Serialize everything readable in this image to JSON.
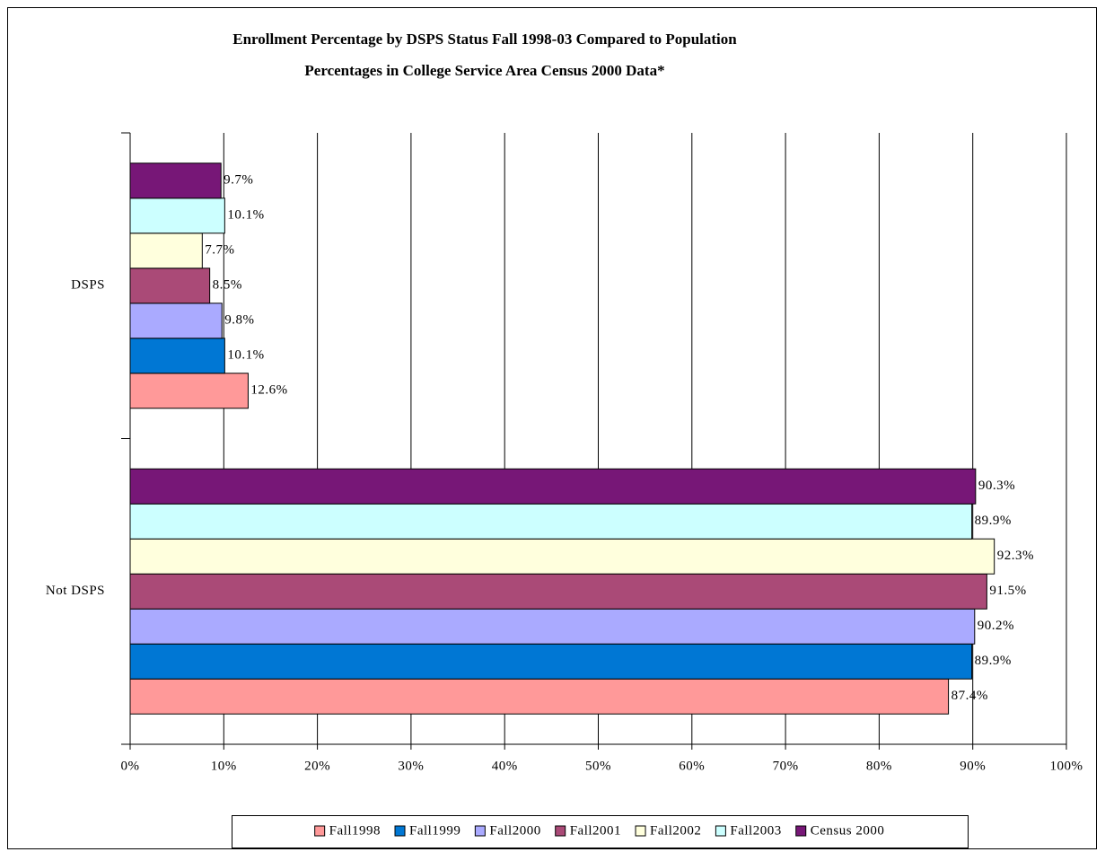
{
  "chart_data": {
    "type": "bar",
    "orientation": "horizontal",
    "title": [
      "Enrollment Percentage by DSPS Status Fall 1998-03 Compared to Population",
      "Percentages in College Service Area Census 2000 Data*"
    ],
    "categories": [
      "DSPS",
      "Not DSPS"
    ],
    "series": [
      {
        "name": "Fall1998",
        "color": "#ff9999",
        "values": [
          12.6,
          87.4
        ],
        "value_labels": [
          "12.6%",
          "87.4%"
        ]
      },
      {
        "name": "Fall1999",
        "color": "#0077d4",
        "values": [
          10.1,
          89.9
        ],
        "value_labels": [
          "10.1%",
          "89.9%"
        ]
      },
      {
        "name": "Fall2000",
        "color": "#aaaaff",
        "values": [
          9.8,
          90.2
        ],
        "value_labels": [
          "9.8%",
          "90.2%"
        ]
      },
      {
        "name": "Fall2001",
        "color": "#aa4a77",
        "values": [
          8.5,
          91.5
        ],
        "value_labels": [
          "8.5%",
          "91.5%"
        ]
      },
      {
        "name": "Fall2002",
        "color": "#ffffdd",
        "values": [
          7.7,
          92.3
        ],
        "value_labels": [
          "7.7%",
          "92.3%"
        ]
      },
      {
        "name": "Fall2003",
        "color": "#ccffff",
        "values": [
          10.1,
          89.9
        ],
        "value_labels": [
          "10.1%",
          "89.9%"
        ]
      },
      {
        "name": "Census 2000",
        "color": "#771777",
        "values": [
          9.7,
          90.3
        ],
        "value_labels": [
          "9.7%",
          "90.3%"
        ]
      }
    ],
    "xlim": [
      0,
      100
    ],
    "xticks": [
      {
        "value": 0,
        "label": "0%"
      },
      {
        "value": 10,
        "label": "10%"
      },
      {
        "value": 20,
        "label": "20%"
      },
      {
        "value": 30,
        "label": "30%"
      },
      {
        "value": 40,
        "label": "40%"
      },
      {
        "value": 50,
        "label": "50%"
      },
      {
        "value": 60,
        "label": "60%"
      },
      {
        "value": 70,
        "label": "70%"
      },
      {
        "value": 80,
        "label": "80%"
      },
      {
        "value": 90,
        "label": "90%"
      },
      {
        "value": 100,
        "label": "100%"
      }
    ],
    "grid": true,
    "legend": "bottom"
  }
}
